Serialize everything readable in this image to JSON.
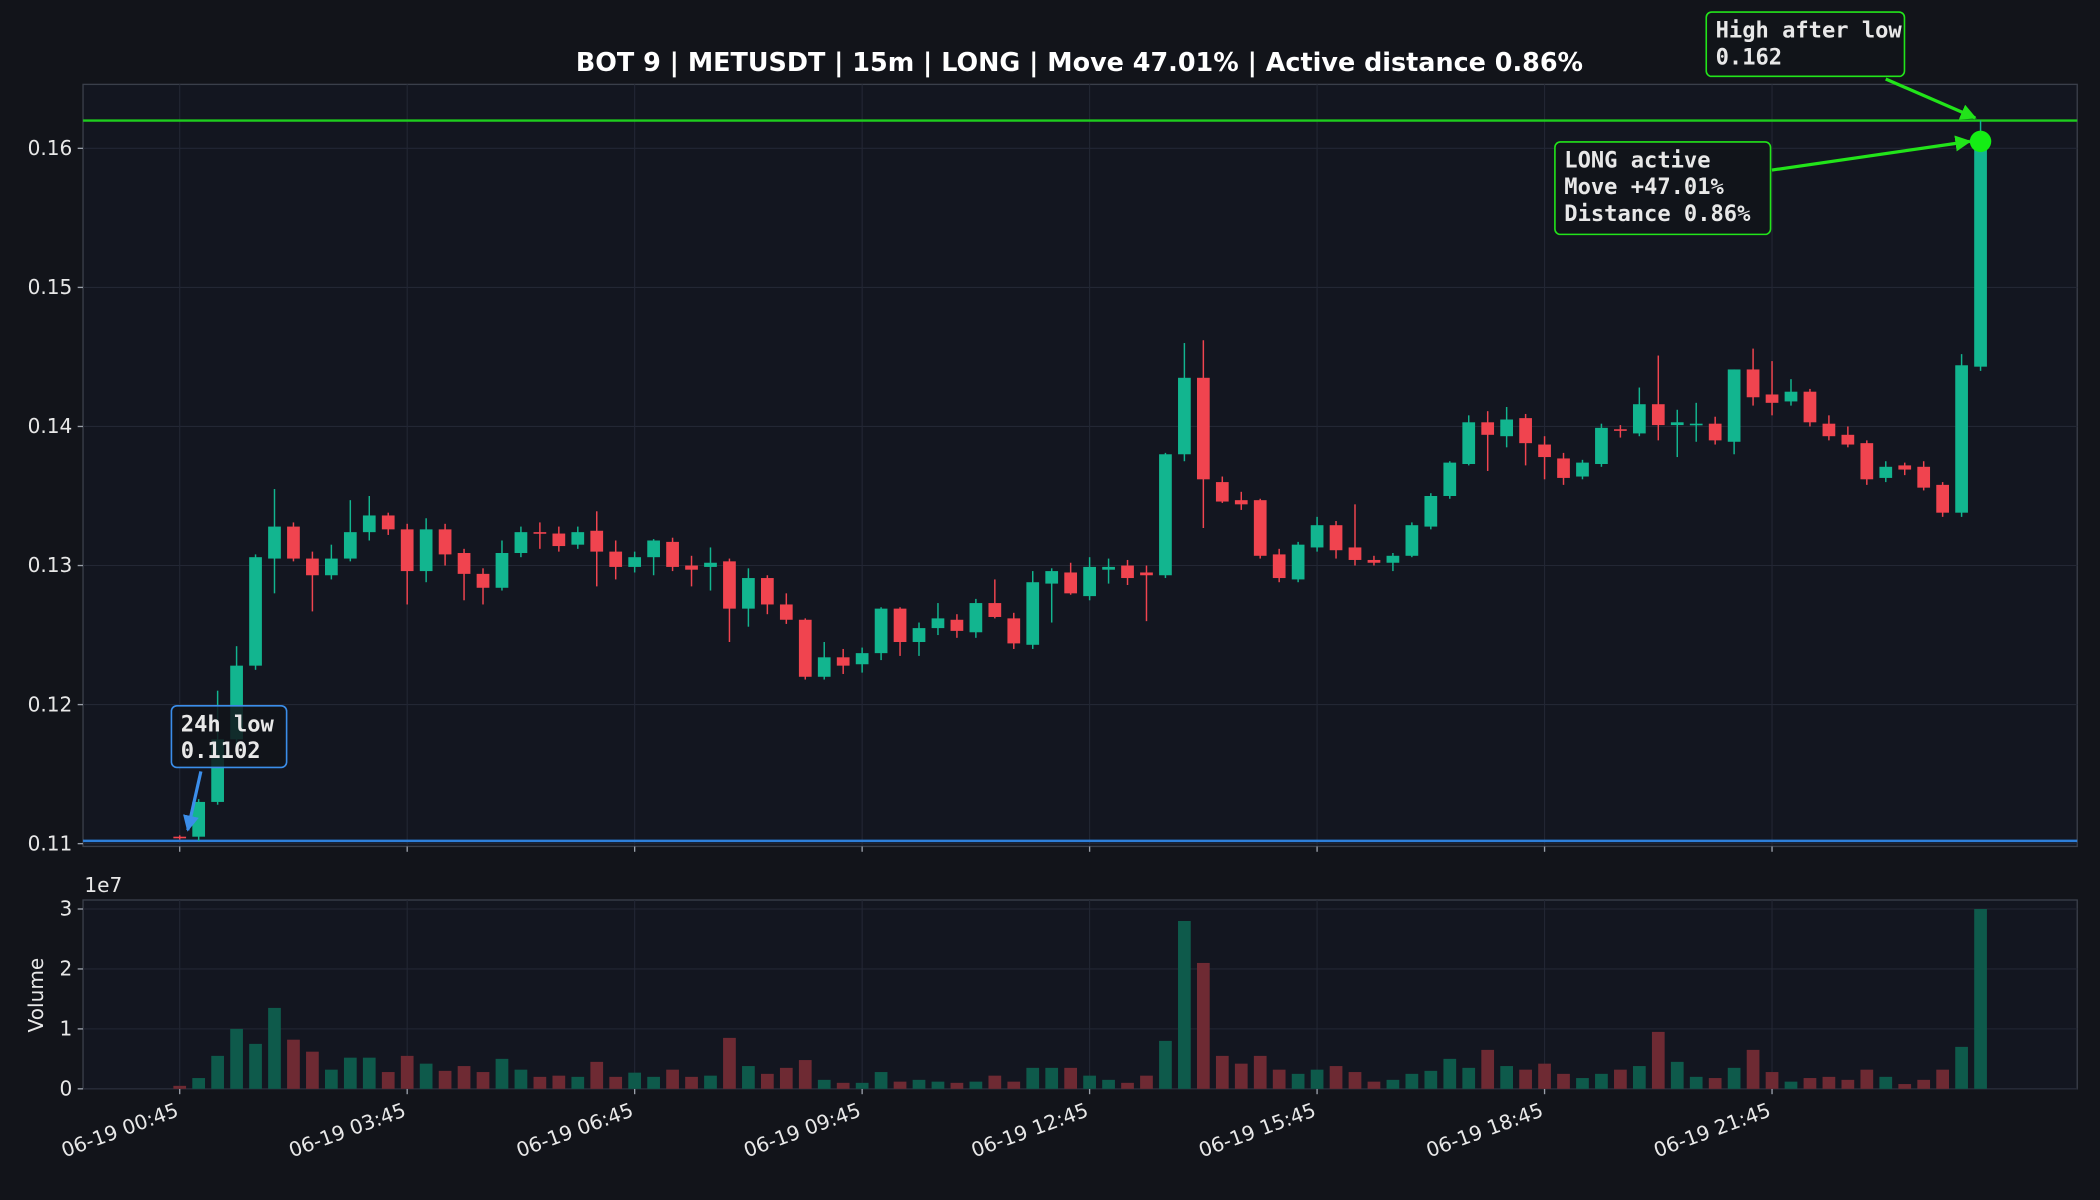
{
  "chart_data": {
    "type": "candlestick",
    "title": "BOT 9 | METUSDT | 15m | LONG | Move 47.01% | Active distance 0.86%",
    "categories": [
      "06-19 00:45",
      null,
      null,
      null,
      null,
      null,
      null,
      null,
      null,
      null,
      null,
      null,
      "06-19 03:45",
      null,
      null,
      null,
      null,
      null,
      null,
      null,
      null,
      null,
      null,
      null,
      "06-19 06:45",
      null,
      null,
      null,
      null,
      null,
      null,
      null,
      null,
      null,
      null,
      null,
      "06-19 09:45",
      null,
      null,
      null,
      null,
      null,
      null,
      null,
      null,
      null,
      null,
      null,
      "06-19 12:45",
      null,
      null,
      null,
      null,
      null,
      null,
      null,
      null,
      null,
      null,
      null,
      "06-19 15:45",
      null,
      null,
      null,
      null,
      null,
      null,
      null,
      null,
      null,
      null,
      null,
      "06-19 18:45",
      null,
      null,
      null,
      null,
      null,
      null,
      null,
      null,
      null,
      null,
      null,
      "06-19 21:45",
      null,
      null,
      null,
      null,
      null,
      null,
      null,
      null,
      null,
      null,
      null
    ],
    "open": [
      0.1105,
      0.1105,
      0.113,
      0.1175,
      0.1228,
      0.1305,
      0.1328,
      0.1305,
      0.1293,
      0.1305,
      0.1324,
      0.1336,
      0.1326,
      0.1296,
      0.1326,
      0.1309,
      0.1294,
      0.1284,
      0.1309,
      0.1324,
      0.1323,
      0.1315,
      0.1325,
      0.131,
      0.1299,
      0.1306,
      0.1317,
      0.13,
      0.1299,
      0.1303,
      0.1269,
      0.1291,
      0.1272,
      0.1261,
      0.122,
      0.1234,
      0.1229,
      0.1237,
      0.1269,
      0.1245,
      0.1255,
      0.1261,
      0.1252,
      0.1273,
      0.1262,
      0.1243,
      0.1287,
      0.1295,
      0.1278,
      0.1297,
      0.13,
      0.1295,
      0.1293,
      0.138,
      0.1435,
      0.136,
      0.1347,
      0.1347,
      0.1308,
      0.129,
      0.1313,
      0.1329,
      0.1313,
      0.1304,
      0.1302,
      0.1307,
      0.1328,
      0.135,
      0.1373,
      0.1403,
      0.1393,
      0.1406,
      0.1387,
      0.1377,
      0.1364,
      0.1373,
      0.1398,
      0.1395,
      0.1416,
      0.1401,
      0.1401,
      0.1402,
      0.1389,
      0.1441,
      0.1423,
      0.1418,
      0.1425,
      0.1402,
      0.1394,
      0.1388,
      0.1363,
      0.1372,
      0.1371,
      0.1358,
      0.1338,
      0.1443
    ],
    "high": [
      0.1106,
      0.1132,
      0.121,
      0.1242,
      0.1308,
      0.1355,
      0.1331,
      0.131,
      0.1315,
      0.1347,
      0.135,
      0.1338,
      0.133,
      0.1334,
      0.133,
      0.1312,
      0.1298,
      0.1318,
      0.1328,
      0.1331,
      0.1328,
      0.1328,
      0.1339,
      0.1318,
      0.131,
      0.1319,
      0.132,
      0.1307,
      0.1313,
      0.1305,
      0.1298,
      0.1293,
      0.128,
      0.1262,
      0.1245,
      0.124,
      0.1241,
      0.127,
      0.127,
      0.1259,
      0.1273,
      0.1265,
      0.1276,
      0.129,
      0.1266,
      0.1296,
      0.1298,
      0.1302,
      0.1306,
      0.1305,
      0.1304,
      0.13,
      0.1381,
      0.146,
      0.1462,
      0.1364,
      0.1353,
      0.1348,
      0.1312,
      0.1317,
      0.1335,
      0.1332,
      0.1344,
      0.1307,
      0.1309,
      0.1331,
      0.1352,
      0.1375,
      0.1408,
      0.1411,
      0.1414,
      0.1409,
      0.1393,
      0.1381,
      0.1376,
      0.1402,
      0.1401,
      0.1428,
      0.1451,
      0.1412,
      0.1417,
      0.1407,
      0.1441,
      0.1456,
      0.1447,
      0.1434,
      0.1427,
      0.1408,
      0.14,
      0.139,
      0.1375,
      0.1374,
      0.1375,
      0.136,
      0.1452,
      0.162
    ],
    "low": [
      0.1103,
      0.1102,
      0.1128,
      0.117,
      0.1225,
      0.128,
      0.1303,
      0.1267,
      0.129,
      0.1303,
      0.1318,
      0.1322,
      0.1272,
      0.1288,
      0.13,
      0.1275,
      0.1272,
      0.1282,
      0.1306,
      0.1312,
      0.131,
      0.1312,
      0.1285,
      0.129,
      0.1295,
      0.1293,
      0.1296,
      0.1285,
      0.1282,
      0.1245,
      0.1256,
      0.1265,
      0.1258,
      0.1218,
      0.1218,
      0.1222,
      0.1223,
      0.1232,
      0.1235,
      0.1235,
      0.125,
      0.1248,
      0.1248,
      0.1262,
      0.124,
      0.124,
      0.1259,
      0.1279,
      0.1275,
      0.1287,
      0.1286,
      0.126,
      0.1291,
      0.1375,
      0.1327,
      0.1345,
      0.134,
      0.1305,
      0.1288,
      0.1288,
      0.131,
      0.1305,
      0.13,
      0.13,
      0.1296,
      0.1306,
      0.1326,
      0.1348,
      0.1372,
      0.1368,
      0.1385,
      0.1372,
      0.1362,
      0.1358,
      0.1362,
      0.1371,
      0.1392,
      0.1393,
      0.139,
      0.1378,
      0.1389,
      0.1387,
      0.138,
      0.1415,
      0.1408,
      0.1415,
      0.14,
      0.139,
      0.1385,
      0.1358,
      0.136,
      0.1365,
      0.1354,
      0.1335,
      0.1335,
      0.144
    ],
    "close": [
      0.1104,
      0.113,
      0.1175,
      0.1228,
      0.1306,
      0.1328,
      0.1305,
      0.1293,
      0.1305,
      0.1324,
      0.1336,
      0.1326,
      0.1296,
      0.1326,
      0.1308,
      0.1294,
      0.1284,
      0.1309,
      0.1324,
      0.1323,
      0.1314,
      0.1324,
      0.131,
      0.1299,
      0.1306,
      0.1318,
      0.1299,
      0.1297,
      0.1302,
      0.1269,
      0.1291,
      0.1272,
      0.1261,
      0.122,
      0.1234,
      0.1228,
      0.1237,
      0.1269,
      0.1245,
      0.1255,
      0.1262,
      0.1253,
      0.1273,
      0.1263,
      0.1244,
      0.1288,
      0.1296,
      0.128,
      0.1299,
      0.1299,
      0.1291,
      0.1293,
      0.138,
      0.1435,
      0.1362,
      0.1346,
      0.1344,
      0.1307,
      0.1291,
      0.1315,
      0.1329,
      0.1311,
      0.1304,
      0.1302,
      0.1307,
      0.1329,
      0.135,
      0.1374,
      0.1403,
      0.1394,
      0.1405,
      0.1388,
      0.1378,
      0.1363,
      0.1374,
      0.1399,
      0.1397,
      0.1416,
      0.1401,
      0.1403,
      0.1402,
      0.139,
      0.1441,
      0.1421,
      0.1417,
      0.1425,
      0.1403,
      0.1393,
      0.1387,
      0.1362,
      0.1371,
      0.1369,
      0.1356,
      0.1338,
      0.1444,
      0.1605
    ],
    "volume": [
      0.05,
      0.18,
      0.55,
      1.0,
      0.75,
      1.35,
      0.82,
      0.62,
      0.32,
      0.52,
      0.52,
      0.28,
      0.55,
      0.42,
      0.3,
      0.38,
      0.28,
      0.5,
      0.32,
      0.2,
      0.22,
      0.2,
      0.45,
      0.2,
      0.27,
      0.2,
      0.32,
      0.2,
      0.22,
      0.85,
      0.38,
      0.25,
      0.35,
      0.48,
      0.15,
      0.1,
      0.1,
      0.28,
      0.12,
      0.15,
      0.12,
      0.1,
      0.12,
      0.22,
      0.12,
      0.35,
      0.35,
      0.35,
      0.22,
      0.15,
      0.1,
      0.22,
      0.8,
      2.8,
      2.1,
      0.55,
      0.42,
      0.55,
      0.32,
      0.25,
      0.32,
      0.38,
      0.28,
      0.12,
      0.15,
      0.25,
      0.3,
      0.5,
      0.35,
      0.65,
      0.38,
      0.32,
      0.42,
      0.25,
      0.18,
      0.25,
      0.32,
      0.38,
      0.95,
      0.45,
      0.2,
      0.18,
      0.35,
      0.65,
      0.28,
      0.12,
      0.18,
      0.2,
      0.15,
      0.32,
      0.2,
      0.08,
      0.15,
      0.32,
      0.7,
      3.0
    ],
    "up_color": "#12b58f",
    "down_color": "#f0444f",
    "volume_up_color": "#0e5a4b",
    "volume_down_color": "#6e2a33",
    "xlim": [
      -5.1,
      100.1
    ],
    "ylim": [
      0.1098,
      0.1646
    ],
    "yticks": [
      0.11,
      0.12,
      0.13,
      0.14,
      0.15,
      0.16
    ],
    "grid": true,
    "volume_axis": {
      "label": "Volume",
      "offset_label": "1e7",
      "ylim": [
        0,
        3.15
      ],
      "yticks": [
        0,
        1,
        2,
        3
      ]
    },
    "reference_lines": [
      {
        "value": 0.1102,
        "color": "#2e7fd9"
      },
      {
        "value": 0.162,
        "color": "#1ecc1e"
      }
    ],
    "marker_color": "#14ee14",
    "annotations": [
      {
        "lines": [
          "24h low",
          "0.1102"
        ],
        "color": "#3b8eea"
      },
      {
        "lines": [
          "High after low",
          "0.162"
        ],
        "color": "#22e41a"
      },
      {
        "lines": [
          "LONG active",
          "Move +47.01%",
          "Distance 0.86%"
        ],
        "color": "#22e41a"
      }
    ]
  }
}
